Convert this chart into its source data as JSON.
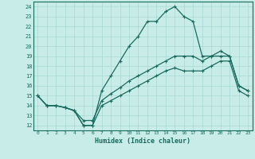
{
  "title": "",
  "xlabel": "Humidex (Indice chaleur)",
  "bg_color": "#c8ece8",
  "grid_color": "#a8d8d4",
  "line_color": "#1a6b60",
  "xlim": [
    -0.5,
    23.5
  ],
  "ylim": [
    11.5,
    24.5
  ],
  "xticks": [
    0,
    1,
    2,
    3,
    4,
    5,
    6,
    7,
    8,
    9,
    10,
    11,
    12,
    13,
    14,
    15,
    16,
    17,
    18,
    19,
    20,
    21,
    22,
    23
  ],
  "yticks": [
    12,
    13,
    14,
    15,
    16,
    17,
    18,
    19,
    20,
    21,
    22,
    23,
    24
  ],
  "line1_x": [
    0,
    1,
    2,
    3,
    4,
    5,
    6,
    7,
    8,
    9,
    10,
    11,
    12,
    13,
    14,
    15,
    16,
    17,
    18,
    19,
    20,
    21,
    22,
    23
  ],
  "line1_y": [
    15,
    14,
    14,
    13.8,
    13.5,
    12.0,
    12.0,
    15.5,
    17.0,
    18.5,
    20.0,
    21.0,
    22.5,
    22.5,
    23.5,
    24.0,
    23.0,
    22.5,
    19.0,
    19.0,
    19.0,
    19.0,
    16.0,
    15.5
  ],
  "line2_x": [
    0,
    1,
    2,
    3,
    4,
    5,
    6,
    7,
    8,
    9,
    10,
    11,
    12,
    13,
    14,
    15,
    16,
    17,
    18,
    19,
    20,
    21,
    22,
    23
  ],
  "line2_y": [
    15,
    14,
    14,
    13.8,
    13.5,
    12.5,
    12.5,
    14.5,
    15.2,
    15.8,
    16.5,
    17.0,
    17.5,
    18.0,
    18.5,
    19.0,
    19.0,
    19.0,
    18.5,
    19.0,
    19.5,
    19.0,
    16.0,
    15.5
  ],
  "line3_x": [
    0,
    1,
    2,
    3,
    4,
    5,
    6,
    7,
    8,
    9,
    10,
    11,
    12,
    13,
    14,
    15,
    16,
    17,
    18,
    19,
    20,
    21,
    22,
    23
  ],
  "line3_y": [
    15,
    14,
    14,
    13.8,
    13.5,
    12.0,
    12.0,
    14.0,
    14.5,
    15.0,
    15.5,
    16.0,
    16.5,
    17.0,
    17.5,
    17.8,
    17.5,
    17.5,
    17.5,
    18.0,
    18.5,
    18.5,
    15.5,
    15.0
  ]
}
